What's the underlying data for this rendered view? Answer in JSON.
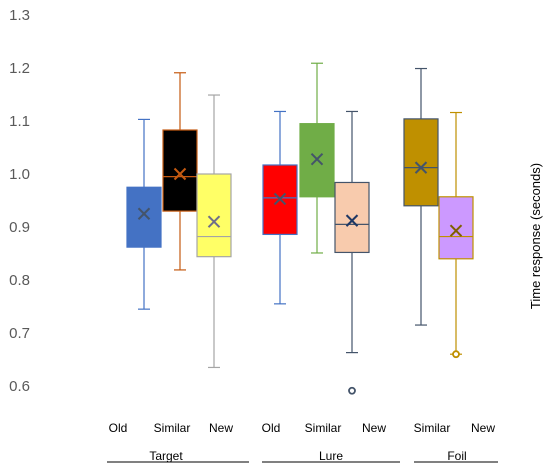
{
  "chart_data": {
    "type": "box",
    "ylabel": "Time response (seconds)",
    "ylim": [
      0.6,
      1.3
    ],
    "yticks": [
      "0.6",
      "0.7",
      "0.8",
      "0.9",
      "1.0",
      "1.1",
      "1.2",
      "1.3"
    ],
    "grid": false,
    "legend": "none",
    "groups": [
      {
        "name": "Target",
        "boxes": [
          {
            "category": "Old",
            "color": "#4472C4",
            "min": 0.745,
            "q1": 0.862,
            "median": 0.91,
            "q3": 0.975,
            "max": 1.103,
            "mean": 0.925,
            "outliers": []
          },
          {
            "category": "Similar",
            "color": "#000000",
            "border": "#C55A11",
            "min": 0.819,
            "q1": 0.93,
            "median": 0.995,
            "q3": 1.083,
            "max": 1.191,
            "mean": 1.0,
            "outliers": []
          },
          {
            "category": "New",
            "color": "#FFFF66",
            "border": "#A5A5A5",
            "min": 0.635,
            "q1": 0.844,
            "median": 0.882,
            "q3": 1.0,
            "max": 1.149,
            "mean": 0.91,
            "outliers": []
          }
        ]
      },
      {
        "name": "Lure",
        "boxes": [
          {
            "category": "Old",
            "color": "#FF0000",
            "border": "#4472C4",
            "min": 0.755,
            "q1": 0.886,
            "median": 0.955,
            "q3": 1.017,
            "max": 1.118,
            "mean": 0.953,
            "outliers": []
          },
          {
            "category": "Similar",
            "color": "#70AD47",
            "border": "#70AD47",
            "min": 0.851,
            "q1": 0.957,
            "median": 1.022,
            "q3": 1.095,
            "max": 1.209,
            "mean": 1.028,
            "outliers": []
          },
          {
            "category": "New",
            "color": "#F8CBAD",
            "border": "#44546A",
            "min": 0.663,
            "q1": 0.852,
            "median": 0.905,
            "q3": 0.984,
            "max": 1.118,
            "mean": 0.912,
            "outliers": [
              0.591
            ]
          }
        ]
      },
      {
        "name": "Foil",
        "boxes": [
          {
            "category": "Similar",
            "color": "#BF9000",
            "border": "#44546A",
            "min": 0.715,
            "q1": 0.94,
            "median": 1.012,
            "q3": 1.104,
            "max": 1.199,
            "mean": 1.012,
            "outliers": []
          },
          {
            "category": "New",
            "color": "#CC99FF",
            "border": "#BF9000",
            "min": 0.66,
            "q1": 0.84,
            "median": 0.882,
            "q3": 0.957,
            "max": 1.116,
            "mean": 0.893,
            "outliers": [
              0.66
            ]
          }
        ]
      }
    ],
    "x_labels": [
      {
        "text": "Old"
      },
      {
        "text": "Similar"
      },
      {
        "text": "New"
      },
      {
        "text": "Old"
      },
      {
        "text": "Similar"
      },
      {
        "text": "New"
      },
      {
        "text": "Similar"
      },
      {
        "text": "New"
      }
    ]
  }
}
